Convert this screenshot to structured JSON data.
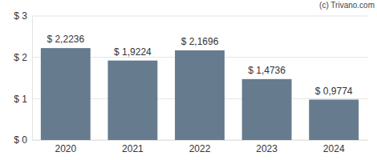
{
  "chart_data": {
    "type": "bar",
    "annotation": "(c) Trivano.com",
    "categories": [
      "2020",
      "2021",
      "2022",
      "2023",
      "2024"
    ],
    "values": [
      2.2236,
      1.9224,
      2.1696,
      1.4736,
      0.9774
    ],
    "value_labels": [
      "$ 2,2236",
      "$ 1,9224",
      "$ 2,1696",
      "$ 1,4736",
      "$ 0,9774"
    ],
    "data_labels": true,
    "color": "#667b8d",
    "ylim": [
      0,
      3
    ],
    "yticks": [
      {
        "value": 0,
        "label": "$ 0"
      },
      {
        "value": 1,
        "label": "$ 1"
      },
      {
        "value": 2,
        "label": "$ 2"
      },
      {
        "value": 3,
        "label": "$ 3"
      }
    ],
    "grid": true
  }
}
